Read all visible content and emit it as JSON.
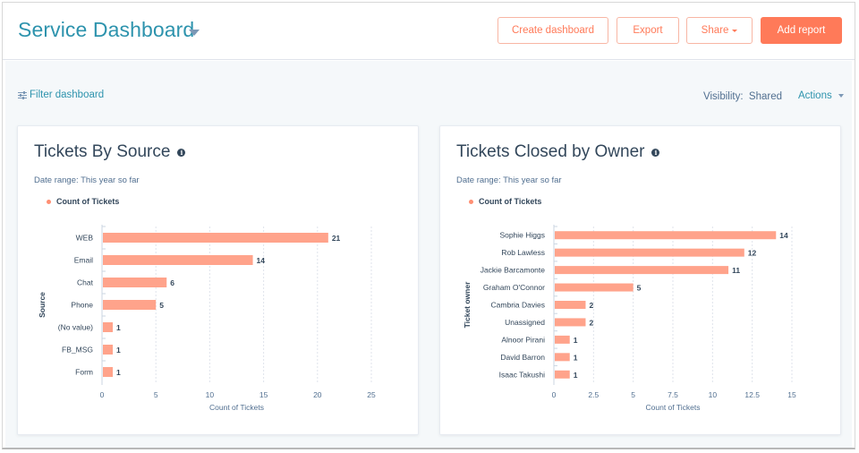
{
  "header": {
    "title": "Service Dashboard",
    "buttons": {
      "create_dashboard": "Create dashboard",
      "export": "Export",
      "share": "Share",
      "add_report": "Add report"
    }
  },
  "toolbar": {
    "filter_label": "Filter dashboard",
    "visibility_label": "Visibility:",
    "visibility_value": "Shared",
    "actions_label": "Actions"
  },
  "colors": {
    "accent": "#2d93ad",
    "brand_orange": "#ff7a59",
    "bar": "#ffa38b"
  },
  "reports": [
    {
      "title": "Tickets By Source",
      "date_range": "Date range: This year so far",
      "legend": "Count of Tickets"
    },
    {
      "title": "Tickets Closed by Owner",
      "date_range": "Date range: This year so far",
      "legend": "Count of Tickets"
    }
  ],
  "chart_data": [
    {
      "type": "bar",
      "orientation": "horizontal",
      "title": "Tickets By Source",
      "categories": [
        "WEB",
        "Email",
        "Chat",
        "Phone",
        "(No value)",
        "FB_MSG",
        "Form"
      ],
      "values": [
        21,
        14,
        6,
        5,
        1,
        1,
        1
      ],
      "xlabel": "Count of Tickets",
      "ylabel": "Source",
      "xlim": [
        0,
        25
      ],
      "xticks": [
        "0",
        "5",
        "10",
        "15",
        "20",
        "25"
      ],
      "tick_values": [
        0,
        5,
        10,
        15,
        20,
        25
      ],
      "legend": [
        "Count of Tickets"
      ],
      "legend_position": "top-left",
      "grid": true
    },
    {
      "type": "bar",
      "orientation": "horizontal",
      "title": "Tickets Closed by Owner",
      "categories": [
        "Sophie Higgs",
        "Rob Lawless",
        "Jackie Barcamonte",
        "Graham O'Connor",
        "Cambria Davies",
        "Unassigned",
        "Alnoor Pirani",
        "David Barron",
        "Isaac Takushi"
      ],
      "values": [
        14,
        12,
        11,
        5,
        2,
        2,
        1,
        1,
        1
      ],
      "xlabel": "Count of Tickets",
      "ylabel": "Ticket owner",
      "xlim": [
        0,
        15
      ],
      "xticks": [
        "0",
        "2.5",
        "5",
        "7.5",
        "10",
        "12.5",
        "15"
      ],
      "tick_values": [
        0,
        2.5,
        5,
        7.5,
        10,
        12.5,
        15
      ],
      "legend": [
        "Count of Tickets"
      ],
      "legend_position": "top-left",
      "grid": true
    }
  ]
}
